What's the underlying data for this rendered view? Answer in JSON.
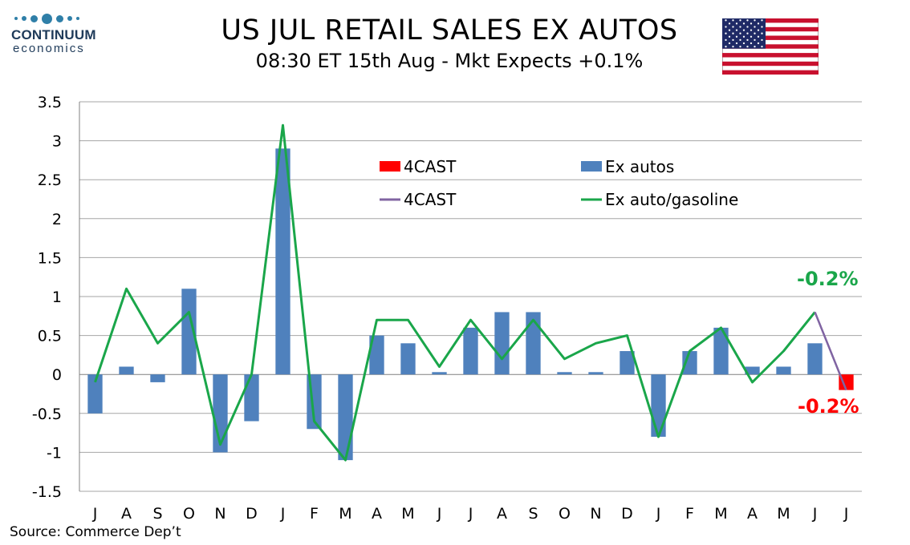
{
  "header": {
    "title": "US JUL RETAIL SALES EX AUTOS",
    "subtitle": "08:30 ET 15th Aug - Mkt Expects +0.1%",
    "logo_name": "CONTINUUM",
    "logo_sub": "economics"
  },
  "footer": {
    "source": "Source: Commerce Dep’t"
  },
  "colors": {
    "bar": "#4f81bd",
    "forecast_bar": "#ff0000",
    "line": "#1aa64a",
    "forecast_line": "#8064a2",
    "grid": "#a6a6a6",
    "annotation_green": "#1aa64a",
    "annotation_red": "#ff0000"
  },
  "chart_data": {
    "type": "bar",
    "categories": [
      "J",
      "A",
      "S",
      "O",
      "N",
      "D",
      "J",
      "F",
      "M",
      "A",
      "M",
      "J",
      "J",
      "A",
      "S",
      "O",
      "N",
      "D",
      "J",
      "F",
      "M",
      "A",
      "M",
      "J",
      "J"
    ],
    "y_tick_labels": [
      "3.5",
      "3",
      "2.5",
      "2",
      "1.5",
      "1",
      "0.5",
      "0",
      "-0.5",
      "-1",
      "-1.5"
    ],
    "ylim": [
      -1.5,
      3.5
    ],
    "grid": true,
    "legend_position": "upper-center",
    "series": [
      {
        "name": "Ex autos",
        "kind": "bar",
        "values": [
          -0.5,
          0.1,
          -0.1,
          1.1,
          -1.0,
          -0.6,
          2.9,
          -0.7,
          -1.1,
          0.5,
          0.4,
          0.03,
          0.6,
          0.8,
          0.8,
          0.03,
          0.03,
          0.3,
          -0.8,
          0.3,
          0.6,
          0.1,
          0.1,
          0.4,
          null
        ]
      },
      {
        "name": "4CAST",
        "kind": "bar",
        "values": [
          null,
          null,
          null,
          null,
          null,
          null,
          null,
          null,
          null,
          null,
          null,
          null,
          null,
          null,
          null,
          null,
          null,
          null,
          null,
          null,
          null,
          null,
          null,
          null,
          -0.2
        ]
      },
      {
        "name": "Ex auto/gasoline",
        "kind": "line",
        "values": [
          -0.1,
          1.1,
          0.4,
          0.8,
          -0.9,
          0.0,
          3.2,
          -0.6,
          -1.1,
          0.7,
          0.7,
          0.1,
          0.7,
          0.2,
          0.7,
          0.2,
          0.4,
          0.5,
          -0.8,
          0.3,
          0.6,
          -0.1,
          0.3,
          0.8,
          null
        ]
      },
      {
        "name": "4CAST",
        "kind": "line",
        "values": [
          null,
          null,
          null,
          null,
          null,
          null,
          null,
          null,
          null,
          null,
          null,
          null,
          null,
          null,
          null,
          null,
          null,
          null,
          null,
          null,
          null,
          null,
          null,
          0.8,
          -0.2
        ]
      }
    ],
    "annotations": [
      {
        "text": "-0.2%",
        "color": "green"
      },
      {
        "text": "-0.2%",
        "color": "red"
      }
    ]
  }
}
